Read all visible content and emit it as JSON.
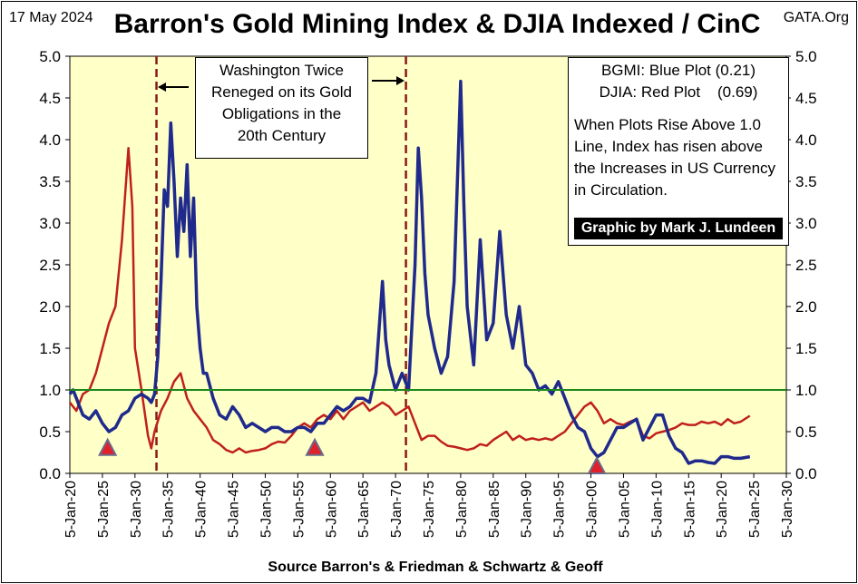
{
  "header": {
    "date": "17 May 2024",
    "title": "Barron's Gold Mining Index & DJIA Indexed / CinC",
    "source_tag": "GATA.Org"
  },
  "footer": {
    "source": "Source Barron's & Friedman & Schwartz & Geoff"
  },
  "annotations": {
    "washington_lines": [
      "Washington Twice",
      "Reneged on its Gold",
      "Obligations in the",
      "20th Century"
    ],
    "legend_bgmi": "BGMI: Blue Plot (0.21)",
    "legend_djia": "DJIA: Red Plot    (0.69)",
    "note_lines": [
      "When Plots Rise Above 1.0",
      "Line, Index has risen above",
      "the Increases in US Currency",
      "in Circulation."
    ],
    "credit": "Graphic by Mark J. Lundeen"
  },
  "colors": {
    "plot_bg": "#ffffc8",
    "bgmi": "#1f2a8c",
    "djia": "#c0201c",
    "ref_line": "#1a8a1a",
    "vline": "#8b1a1a",
    "triangle": "#e0202a",
    "triangle_edge": "#6a6a8a"
  },
  "chart_data": {
    "type": "line",
    "title": "Barron's Gold Mining Index & DJIA Indexed / CinC",
    "xlabel": "Source Barron's & Friedman & Schwartz & Geoff",
    "ylabel": "",
    "xlim": [
      1920,
      2030
    ],
    "ylim": [
      0,
      5
    ],
    "x_ticks": [
      "5-Jan-20",
      "5-Jan-25",
      "5-Jan-30",
      "5-Jan-35",
      "5-Jan-40",
      "5-Jan-45",
      "5-Jan-50",
      "5-Jan-55",
      "5-Jan-60",
      "5-Jan-65",
      "5-Jan-70",
      "5-Jan-75",
      "5-Jan-80",
      "5-Jan-85",
      "5-Jan-90",
      "5-Jan-95",
      "5-Jan-00",
      "5-Jan-05",
      "5-Jan-10",
      "5-Jan-15",
      "5-Jan-20",
      "5-Jan-25",
      "5-Jan-30"
    ],
    "y_ticks": [
      "0.0",
      "0.5",
      "1.0",
      "1.5",
      "2.0",
      "2.5",
      "3.0",
      "3.5",
      "4.0",
      "4.5",
      "5.0"
    ],
    "reference_line": 1.0,
    "vertical_lines": [
      1933.3,
      1971.6
    ],
    "markers": [
      {
        "x": 1925.8,
        "y": 0.22
      },
      {
        "x": 1957.6,
        "y": 0.22
      },
      {
        "x": 2000.9,
        "y": 0.0
      }
    ],
    "series": [
      {
        "name": "BGMI",
        "x": [
          1920,
          1920.5,
          1921,
          1922,
          1923,
          1924,
          1925,
          1926,
          1927,
          1928,
          1929,
          1930,
          1931,
          1932,
          1932.5,
          1933,
          1933.5,
          1934,
          1934.5,
          1935,
          1935.5,
          1936,
          1936.5,
          1937,
          1937.5,
          1938,
          1938.5,
          1939,
          1939.5,
          1940,
          1940.5,
          1941,
          1942,
          1943,
          1944,
          1945,
          1946,
          1947,
          1948,
          1949,
          1950,
          1951,
          1952,
          1953,
          1954,
          1955,
          1956,
          1957,
          1958,
          1959,
          1960,
          1961,
          1962,
          1963,
          1964,
          1965,
          1966,
          1967,
          1968,
          1968.5,
          1969,
          1970,
          1971,
          1972,
          1973,
          1973.5,
          1974,
          1974.5,
          1975,
          1976,
          1977,
          1978,
          1979,
          1980,
          1980.5,
          1981,
          1982,
          1983,
          1984,
          1985,
          1986,
          1987,
          1988,
          1989,
          1990,
          1991,
          1992,
          1993,
          1994,
          1995,
          1996,
          1997,
          1998,
          1999,
          2000,
          2001,
          2002,
          2003,
          2004,
          2005,
          2006,
          2007,
          2008,
          2009,
          2010,
          2011,
          2012,
          2013,
          2014,
          2015,
          2016,
          2017,
          2018,
          2019,
          2020,
          2021,
          2022,
          2023,
          2024.4
        ],
        "values": [
          0.95,
          1.0,
          0.9,
          0.7,
          0.65,
          0.75,
          0.6,
          0.5,
          0.55,
          0.7,
          0.75,
          0.9,
          0.95,
          0.9,
          0.85,
          0.95,
          1.4,
          2.3,
          3.4,
          3.2,
          4.2,
          3.5,
          2.6,
          3.3,
          2.9,
          3.7,
          2.6,
          3.3,
          2.0,
          1.5,
          1.2,
          1.2,
          0.9,
          0.7,
          0.65,
          0.8,
          0.7,
          0.55,
          0.6,
          0.55,
          0.5,
          0.55,
          0.55,
          0.5,
          0.5,
          0.55,
          0.55,
          0.5,
          0.6,
          0.6,
          0.7,
          0.8,
          0.75,
          0.8,
          0.9,
          0.9,
          0.85,
          1.2,
          2.3,
          1.6,
          1.3,
          1.0,
          1.2,
          1.0,
          2.5,
          3.9,
          3.3,
          2.4,
          1.9,
          1.5,
          1.2,
          1.4,
          2.3,
          4.7,
          3.2,
          2.0,
          1.3,
          2.8,
          1.6,
          1.8,
          2.9,
          1.9,
          1.5,
          2.0,
          1.3,
          1.2,
          1.0,
          1.05,
          0.95,
          1.1,
          0.9,
          0.7,
          0.55,
          0.5,
          0.3,
          0.2,
          0.25,
          0.4,
          0.55,
          0.55,
          0.6,
          0.65,
          0.4,
          0.55,
          0.7,
          0.7,
          0.45,
          0.3,
          0.25,
          0.12,
          0.15,
          0.15,
          0.13,
          0.12,
          0.2,
          0.2,
          0.18,
          0.18,
          0.2
        ]
      },
      {
        "name": "DJIA",
        "x": [
          1920,
          1921,
          1922,
          1923,
          1924,
          1925,
          1926,
          1927,
          1928,
          1929,
          1929.6,
          1930,
          1931,
          1932,
          1932.5,
          1933,
          1934,
          1935,
          1936,
          1937,
          1938,
          1939,
          1940,
          1941,
          1942,
          1943,
          1944,
          1945,
          1946,
          1947,
          1948,
          1949,
          1950,
          1951,
          1952,
          1953,
          1954,
          1955,
          1956,
          1957,
          1958,
          1959,
          1960,
          1961,
          1962,
          1963,
          1964,
          1965,
          1966,
          1967,
          1968,
          1969,
          1970,
          1971,
          1972,
          1973,
          1974,
          1975,
          1976,
          1977,
          1978,
          1979,
          1980,
          1981,
          1982,
          1983,
          1984,
          1985,
          1986,
          1987,
          1988,
          1989,
          1990,
          1991,
          1992,
          1993,
          1994,
          1995,
          1996,
          1997,
          1998,
          1999,
          2000,
          2001,
          2002,
          2003,
          2004,
          2005,
          2006,
          2007,
          2008,
          2009,
          2010,
          2011,
          2012,
          2013,
          2014,
          2015,
          2016,
          2017,
          2018,
          2019,
          2020,
          2021,
          2022,
          2023,
          2024.4
        ],
        "values": [
          0.85,
          0.75,
          0.95,
          1.0,
          1.2,
          1.5,
          1.8,
          2.0,
          2.8,
          3.9,
          3.2,
          1.5,
          1.0,
          0.45,
          0.3,
          0.5,
          0.75,
          0.9,
          1.1,
          1.2,
          0.9,
          0.75,
          0.65,
          0.55,
          0.4,
          0.35,
          0.28,
          0.25,
          0.3,
          0.25,
          0.27,
          0.28,
          0.3,
          0.35,
          0.38,
          0.37,
          0.45,
          0.55,
          0.6,
          0.55,
          0.65,
          0.7,
          0.65,
          0.75,
          0.65,
          0.75,
          0.8,
          0.85,
          0.75,
          0.8,
          0.85,
          0.8,
          0.7,
          0.75,
          0.8,
          0.6,
          0.4,
          0.45,
          0.45,
          0.38,
          0.33,
          0.32,
          0.3,
          0.28,
          0.3,
          0.35,
          0.33,
          0.4,
          0.45,
          0.5,
          0.4,
          0.45,
          0.4,
          0.42,
          0.4,
          0.42,
          0.4,
          0.45,
          0.5,
          0.6,
          0.7,
          0.8,
          0.85,
          0.75,
          0.6,
          0.65,
          0.6,
          0.58,
          0.62,
          0.65,
          0.45,
          0.42,
          0.48,
          0.5,
          0.52,
          0.55,
          0.6,
          0.58,
          0.58,
          0.62,
          0.6,
          0.62,
          0.58,
          0.65,
          0.6,
          0.62,
          0.69
        ]
      }
    ]
  }
}
